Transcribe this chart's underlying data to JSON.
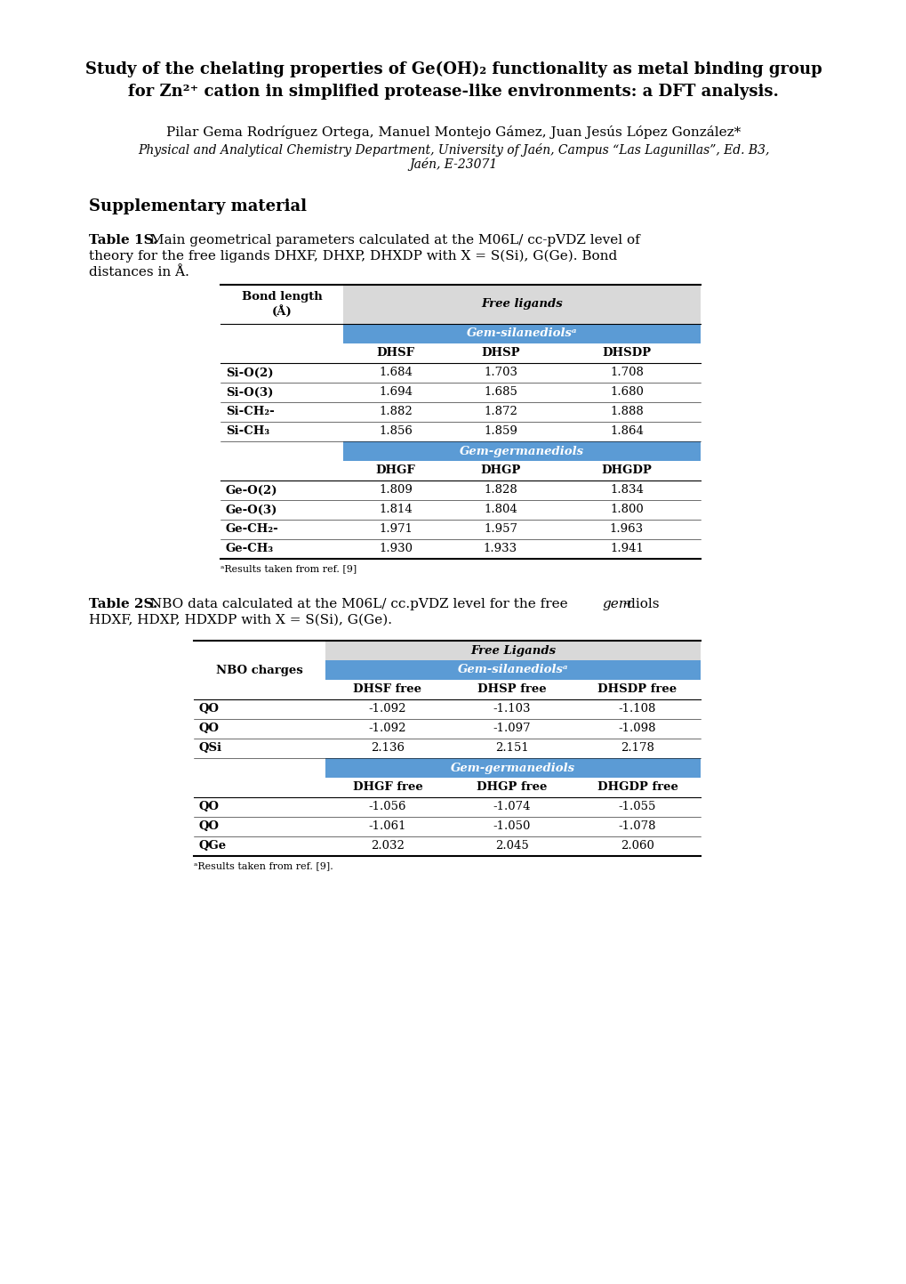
{
  "title_line1": "Study of the chelating properties of Ge(OH)₂ functionality as metal binding group",
  "title_line2": "for Zn²⁺ cation in simplified protease-like environments: a DFT analysis.",
  "authors": "Pilar Gema Rodríguez Ortega, Manuel Montejo Gámez, Juan Jesús López González*",
  "affiliation1": "Physical and Analytical Chemistry Department, University of Jaén, Campus “Las Lagunillas”, Ed. B3,",
  "affiliation2": "Jaén, E-23071",
  "supp_label": "Supplementary material",
  "footnote1": "ᵃResults taken from ref. [9]",
  "footnote2": "ᵃResults taken from ref. [9].",
  "blue_color": "#5B9BD5",
  "light_gray": "#D9D9D9",
  "table1": {
    "si_rows": [
      [
        "Si-O(2)",
        "1.684",
        "1.703",
        "1.708"
      ],
      [
        "Si-O(3)",
        "1.694",
        "1.685",
        "1.680"
      ],
      [
        "Si-CH₂-",
        "1.882",
        "1.872",
        "1.888"
      ],
      [
        "Si-CH₃",
        "1.856",
        "1.859",
        "1.864"
      ]
    ],
    "ge_rows": [
      [
        "Ge-O(2)",
        "1.809",
        "1.828",
        "1.834"
      ],
      [
        "Ge-O(3)",
        "1.814",
        "1.804",
        "1.800"
      ],
      [
        "Ge-CH₂-",
        "1.971",
        "1.957",
        "1.963"
      ],
      [
        "Ge-CH₃",
        "1.930",
        "1.933",
        "1.941"
      ]
    ]
  },
  "table2": {
    "si_rows": [
      [
        "QO",
        "-1.092",
        "-1.103",
        "-1.108"
      ],
      [
        "QO",
        "-1.092",
        "-1.097",
        "-1.098"
      ],
      [
        "QSi",
        "2.136",
        "2.151",
        "2.178"
      ]
    ],
    "ge_rows": [
      [
        "QO",
        "-1.056",
        "-1.074",
        "-1.055"
      ],
      [
        "QO",
        "-1.061",
        "-1.050",
        "-1.078"
      ],
      [
        "QGe",
        "2.032",
        "2.045",
        "2.060"
      ]
    ]
  }
}
